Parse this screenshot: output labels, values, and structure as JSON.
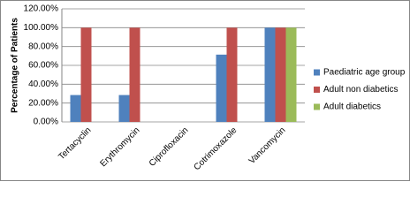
{
  "chart_data": {
    "type": "bar",
    "y_label": "Percentage of Patients",
    "categories": [
      "Tertacyclin",
      "Erythromycin",
      "Ciprofloxacin",
      "Cotrimoxazole",
      "Vancomycin"
    ],
    "series": [
      {
        "name": "Paediatric age group",
        "color": "#4f81bd",
        "values": [
          28.5,
          28.5,
          0,
          71.4,
          100
        ]
      },
      {
        "name": "Adult non diabetics",
        "color": "#c0504d",
        "values": [
          100,
          100,
          0,
          100,
          100
        ]
      },
      {
        "name": "Adult diabetics",
        "color": "#9bbb59",
        "values": [
          0,
          0,
          0,
          0,
          100
        ]
      }
    ],
    "ylim": [
      0,
      120
    ],
    "yticks": [
      {
        "value": 0,
        "label": "0.00%"
      },
      {
        "value": 20,
        "label": "20.00%"
      },
      {
        "value": 40,
        "label": "40.00%"
      },
      {
        "value": 60,
        "label": "60.00%"
      },
      {
        "value": 80,
        "label": "80.00%"
      },
      {
        "value": 100,
        "label": "100.00%"
      },
      {
        "value": 120,
        "label": "120.00%"
      }
    ],
    "grid": true,
    "legend": "right"
  }
}
